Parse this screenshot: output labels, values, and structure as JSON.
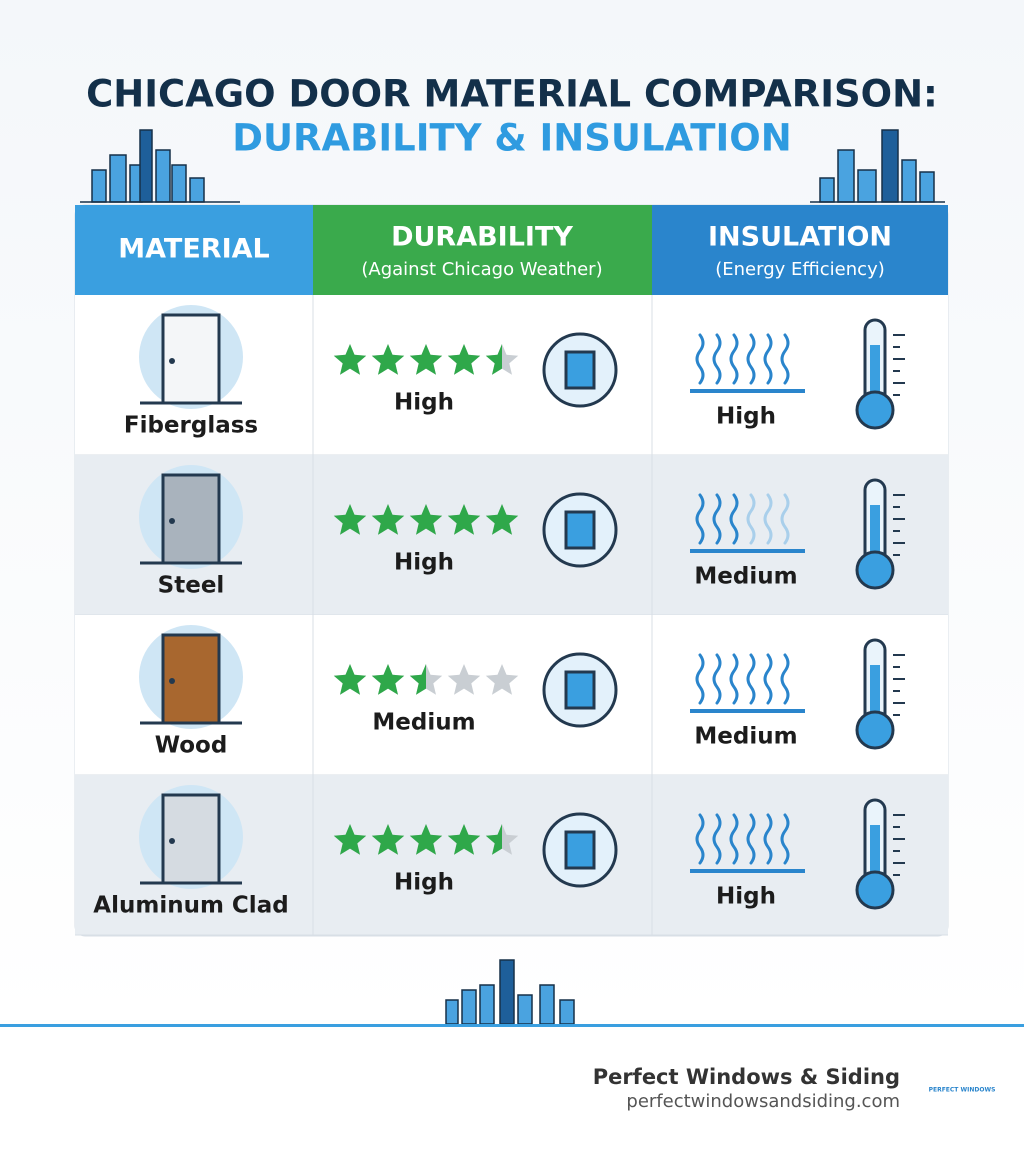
{
  "header": {
    "title": "CHICAGO DOOR MATERIAL COMPARISON:",
    "subtitle": "DURABILITY & INSULATION"
  },
  "table": {
    "columns": [
      {
        "title": "MATERIAL"
      },
      {
        "title": "DURABILITY",
        "subtitle": "(Against Chicago Weather)"
      },
      {
        "title": "INSULATION",
        "subtitle": "(Energy Efficiency)"
      }
    ],
    "rows": [
      {
        "material": "Fiberglass",
        "stars": 4.5,
        "durability": "High",
        "insulation": "High"
      },
      {
        "material": "Steel",
        "stars": 5,
        "durability": "High",
        "insulation": "Medium"
      },
      {
        "material": "Wood",
        "stars": 2.5,
        "durability": "Medium",
        "insulation": "Medium"
      },
      {
        "material": "Aluminum Clad",
        "stars": 4.5,
        "durability": "High",
        "insulation": "High"
      }
    ]
  },
  "footer": {
    "company": "Perfect Windows & Siding",
    "website": "perfectwindowsandsiding.com",
    "logo": "PERFECT WINDOWS"
  }
}
